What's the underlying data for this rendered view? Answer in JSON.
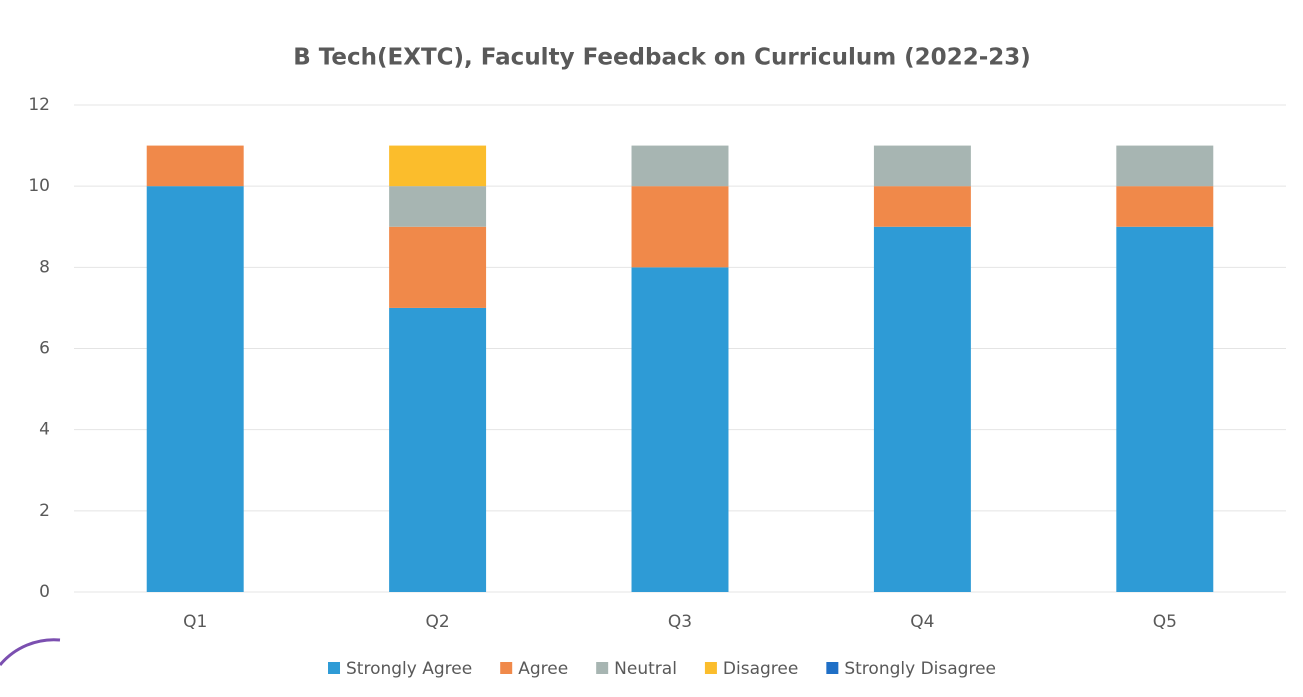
{
  "chart_data": {
    "type": "stacked_bar",
    "title": "B Tech(EXTC), Faculty Feedback on Curriculum (2022-23)",
    "categories": [
      "Q1",
      "Q2",
      "Q3",
      "Q4",
      "Q5"
    ],
    "series": [
      {
        "name": "Strongly Agree",
        "color": "#2e9bd6",
        "values": [
          10,
          7,
          8,
          9,
          9
        ]
      },
      {
        "name": "Agree",
        "color": "#f0894a",
        "values": [
          1,
          2,
          2,
          1,
          1
        ]
      },
      {
        "name": "Neutral",
        "color": "#a7b5b2",
        "values": [
          0,
          1,
          1,
          1,
          1
        ]
      },
      {
        "name": "Disagree",
        "color": "#fbbd2c",
        "values": [
          0,
          1,
          0,
          0,
          0
        ]
      },
      {
        "name": "Strongly Disagree",
        "color": "#1f6fc6",
        "values": [
          0,
          0,
          0,
          0,
          0
        ]
      }
    ],
    "ylim": [
      0,
      12
    ],
    "yticks": [
      0,
      2,
      4,
      6,
      8,
      10,
      12
    ],
    "grid": true,
    "legend": "bottom"
  }
}
